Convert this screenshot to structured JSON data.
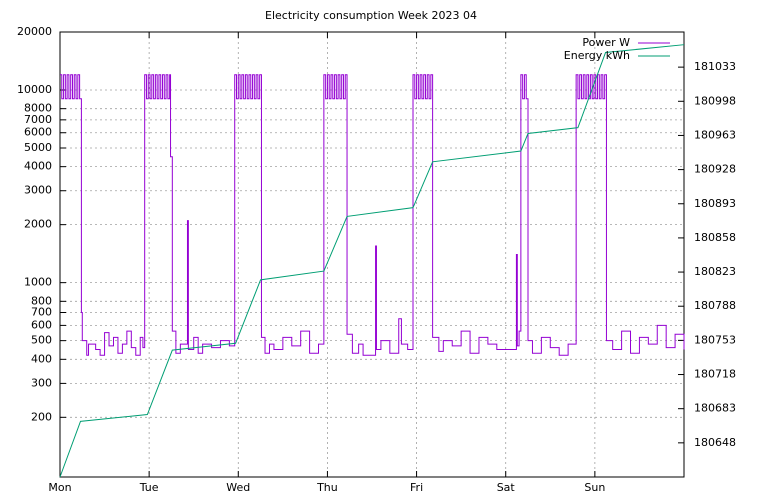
{
  "chart_data": {
    "type": "line",
    "title": "Electricity consumption Week 2023 04",
    "xlim": [
      0,
      7
    ],
    "xticks": [
      {
        "value": 0,
        "label": "Mon"
      },
      {
        "value": 1,
        "label": "Tue"
      },
      {
        "value": 2,
        "label": "Wed"
      },
      {
        "value": 3,
        "label": "Thu"
      },
      {
        "value": 4,
        "label": "Fri"
      },
      {
        "value": 5,
        "label": "Sat"
      },
      {
        "value": 6,
        "label": "Sun"
      }
    ],
    "ylim": [
      98,
      20000
    ],
    "yscale": "log",
    "yticks": [
      200,
      300,
      400,
      500,
      600,
      700,
      800,
      1000,
      2000,
      3000,
      4000,
      5000,
      6000,
      7000,
      8000,
      10000,
      20000
    ],
    "y2lim": [
      180613,
      181069
    ],
    "y2ticks": [
      180648,
      180683,
      180718,
      180753,
      180788,
      180823,
      180858,
      180893,
      180928,
      180963,
      180998,
      181033
    ],
    "grid": true,
    "legend": "top-right",
    "series": [
      {
        "name": "Power W",
        "color": "#9400d3",
        "style": "steps",
        "x": [
          0,
          0.02,
          0.04,
          0.06,
          0.08,
          0.1,
          0.12,
          0.14,
          0.16,
          0.18,
          0.2,
          0.22,
          0.24,
          0.25,
          0.3,
          0.32,
          0.4,
          0.45,
          0.5,
          0.55,
          0.6,
          0.65,
          0.7,
          0.75,
          0.8,
          0.85,
          0.9,
          0.93,
          0.95,
          0.97,
          0.99,
          1.01,
          1.03,
          1.05,
          1.07,
          1.09,
          1.11,
          1.13,
          1.15,
          1.17,
          1.19,
          1.21,
          1.23,
          1.24,
          1.26,
          1.3,
          1.35,
          1.43,
          1.44,
          1.5,
          1.55,
          1.6,
          1.7,
          1.8,
          1.9,
          1.96,
          1.98,
          2.0,
          2.02,
          2.04,
          2.06,
          2.08,
          2.1,
          2.12,
          2.14,
          2.16,
          2.18,
          2.2,
          2.22,
          2.24,
          2.26,
          2.3,
          2.35,
          2.4,
          2.5,
          2.6,
          2.7,
          2.8,
          2.9,
          2.96,
          2.98,
          3.0,
          3.02,
          3.04,
          3.06,
          3.08,
          3.1,
          3.12,
          3.14,
          3.16,
          3.18,
          3.2,
          3.22,
          3.28,
          3.35,
          3.4,
          3.54,
          3.55,
          3.6,
          3.7,
          3.8,
          3.83,
          3.9,
          3.96,
          3.98,
          4.0,
          4.02,
          4.04,
          4.06,
          4.08,
          4.1,
          4.12,
          4.14,
          4.16,
          4.18,
          4.25,
          4.3,
          4.4,
          4.5,
          4.6,
          4.7,
          4.8,
          4.9,
          5.12,
          5.13,
          5.15,
          5.17,
          5.19,
          5.21,
          5.23,
          5.25,
          5.3,
          5.4,
          5.5,
          5.6,
          5.7,
          5.79,
          5.81,
          5.83,
          5.85,
          5.87,
          5.89,
          5.91,
          5.93,
          5.95,
          5.97,
          5.99,
          6.01,
          6.03,
          6.05,
          6.07,
          6.09,
          6.11,
          6.13,
          6.2,
          6.3,
          6.4,
          6.5,
          6.6,
          6.7,
          6.8,
          6.9,
          7.0
        ],
        "values": [
          12000,
          9000,
          12000,
          9000,
          12000,
          9000,
          12000,
          9000,
          12000,
          9000,
          12000,
          9000,
          700,
          500,
          420,
          480,
          450,
          420,
          550,
          470,
          520,
          430,
          480,
          560,
          460,
          420,
          520,
          460,
          12000,
          9000,
          12000,
          9000,
          12000,
          9000,
          12000,
          9000,
          12000,
          9000,
          12000,
          9000,
          12000,
          9000,
          12000,
          4500,
          560,
          430,
          480,
          2100,
          450,
          520,
          430,
          480,
          460,
          500,
          470,
          12000,
          9000,
          12000,
          9000,
          12000,
          9000,
          12000,
          9000,
          12000,
          9000,
          12000,
          9000,
          12000,
          9000,
          12000,
          520,
          430,
          480,
          450,
          520,
          470,
          560,
          430,
          480,
          12000,
          9000,
          12000,
          9000,
          12000,
          9000,
          12000,
          9000,
          12000,
          9000,
          12000,
          9000,
          12000,
          540,
          430,
          480,
          420,
          1550,
          450,
          500,
          430,
          650,
          480,
          450,
          12000,
          9000,
          12000,
          9000,
          12000,
          9000,
          12000,
          9000,
          12000,
          9000,
          12000,
          520,
          440,
          500,
          470,
          560,
          430,
          520,
          480,
          450,
          1400,
          470,
          560,
          12000,
          9000,
          12000,
          9000,
          500,
          430,
          520,
          460,
          420,
          480,
          12000,
          9000,
          12000,
          9000,
          12000,
          9000,
          12000,
          9000,
          12000,
          9000,
          12000,
          9000,
          12000,
          9000,
          12000,
          9000,
          12000,
          500,
          450,
          560,
          430,
          520,
          480,
          600,
          460,
          540,
          450
        ]
      },
      {
        "name": "Energy kWh",
        "color": "#009e73",
        "axis": "y2",
        "x": [
          0,
          0.23,
          0.98,
          1.26,
          1.97,
          2.25,
          2.96,
          3.22,
          3.96,
          4.18,
          5.17,
          5.25,
          5.81,
          6.12,
          7
        ],
        "values": [
          180613,
          180670,
          180677,
          180743,
          180750,
          180815,
          180824,
          180880,
          180889,
          180936,
          180947,
          180965,
          180971,
          181048,
          181056
        ]
      }
    ]
  }
}
